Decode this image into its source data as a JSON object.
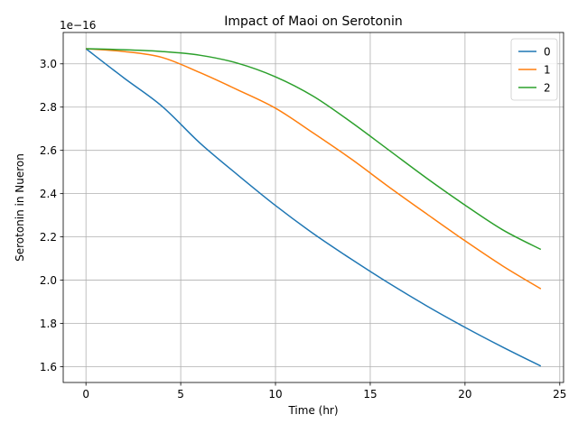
{
  "chart_data": {
    "type": "line",
    "title": "Impact of Maoi on Serotonin",
    "xlabel": "Time (hr)",
    "ylabel": "Serotonin in Nueron",
    "y_offset_text": "1e−16",
    "xlim": [
      -1.2,
      25.2
    ],
    "ylim": [
      1.527,
      3.145
    ],
    "xticks": [
      0,
      5,
      10,
      15,
      20,
      25
    ],
    "xtick_labels": [
      "0",
      "5",
      "10",
      "15",
      "20",
      "25"
    ],
    "yticks": [
      1.6,
      1.8,
      2.0,
      2.2,
      2.4,
      2.6,
      2.8,
      3.0
    ],
    "ytick_labels": [
      "1.6",
      "1.8",
      "2.0",
      "2.2",
      "2.4",
      "2.6",
      "2.8",
      "3.0"
    ],
    "grid": true,
    "legend_position": "upper-right",
    "x": [
      0,
      2,
      4,
      6,
      8,
      10,
      12,
      14,
      16,
      18,
      20,
      22,
      24
    ],
    "series": [
      {
        "name": "0",
        "color": "#1f77b4",
        "values": [
          3.07,
          2.935,
          2.805,
          2.635,
          2.487,
          2.345,
          2.215,
          2.097,
          1.985,
          1.88,
          1.782,
          1.69,
          1.603
        ]
      },
      {
        "name": "1",
        "color": "#ff7f0e",
        "values": [
          3.07,
          3.057,
          3.03,
          2.96,
          2.88,
          2.795,
          2.68,
          2.56,
          2.43,
          2.305,
          2.182,
          2.065,
          1.96
        ]
      },
      {
        "name": "2",
        "color": "#2ca02c",
        "values": [
          3.07,
          3.065,
          3.057,
          3.04,
          3.003,
          2.94,
          2.85,
          2.73,
          2.6,
          2.47,
          2.347,
          2.232,
          2.142
        ]
      }
    ]
  }
}
